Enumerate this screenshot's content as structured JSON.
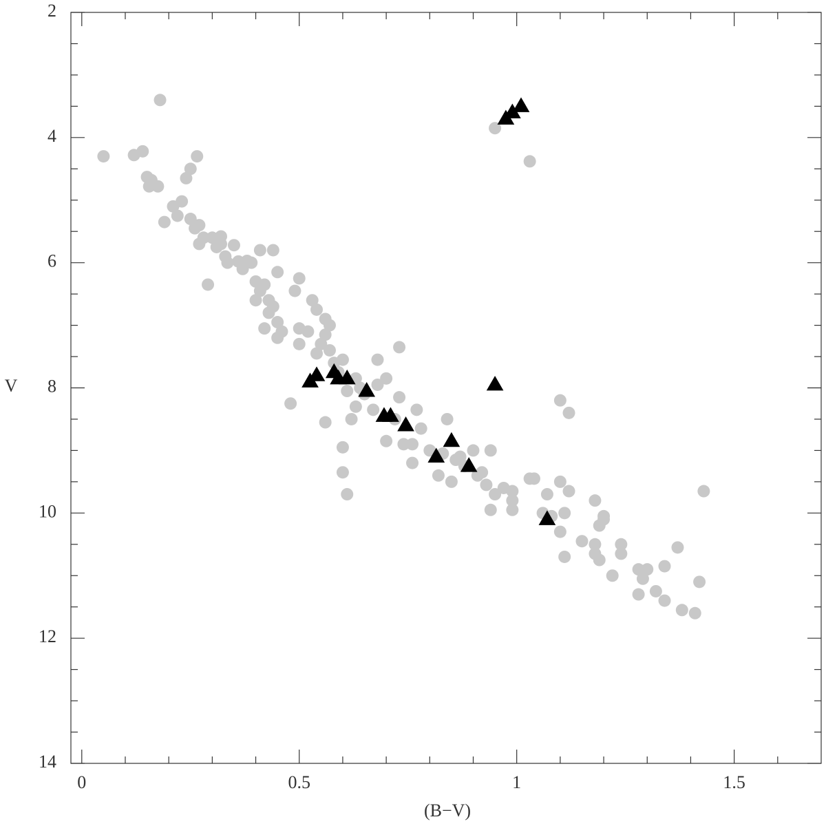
{
  "chart_data": {
    "type": "scatter",
    "xlabel": "(B−V)",
    "ylabel": "V",
    "xlim": [
      -0.025,
      1.7
    ],
    "ylim": [
      2,
      14
    ],
    "y_inverted": true,
    "xticks": [
      0,
      0.5,
      1,
      1.5
    ],
    "yticks": [
      2,
      4,
      6,
      8,
      10,
      12,
      14
    ],
    "xminorticks": [
      0.1,
      0.2,
      0.3,
      0.4,
      0.6,
      0.7,
      0.8,
      0.9,
      1.1,
      1.2,
      1.3,
      1.4,
      1.6
    ],
    "yminorticks": [
      2.5,
      3,
      3.5,
      4.5,
      5,
      5.5,
      6.5,
      7,
      7.5,
      8.5,
      9,
      9.5,
      10.5,
      11,
      11.5,
      12.5,
      13,
      13.5
    ],
    "series": [
      {
        "color": "#c8c8c8",
        "marker": "circle",
        "x": [
          0.05,
          0.18,
          0.12,
          0.14,
          0.15,
          0.16,
          0.155,
          0.175,
          0.19,
          0.21,
          0.23,
          0.22,
          0.24,
          0.25,
          0.265,
          0.25,
          0.26,
          0.27,
          0.27,
          0.28,
          0.29,
          0.3,
          0.31,
          0.32,
          0.32,
          0.33,
          0.335,
          0.35,
          0.36,
          0.37,
          0.38,
          0.39,
          0.4,
          0.4,
          0.41,
          0.41,
          0.42,
          0.42,
          0.43,
          0.43,
          0.44,
          0.44,
          0.45,
          0.45,
          0.45,
          0.46,
          0.48,
          0.49,
          0.5,
          0.5,
          0.5,
          0.52,
          0.53,
          0.54,
          0.54,
          0.55,
          0.56,
          0.56,
          0.56,
          0.57,
          0.57,
          0.58,
          0.59,
          0.6,
          0.6,
          0.6,
          0.61,
          0.61,
          0.62,
          0.63,
          0.64,
          0.63,
          0.65,
          0.67,
          0.68,
          0.68,
          0.7,
          0.7,
          0.72,
          0.73,
          0.73,
          0.74,
          0.76,
          0.76,
          0.77,
          0.78,
          0.8,
          0.82,
          0.83,
          0.84,
          0.85,
          0.86,
          0.87,
          0.88,
          0.9,
          0.91,
          0.92,
          0.93,
          0.94,
          0.94,
          0.95,
          0.95,
          0.97,
          0.99,
          0.99,
          0.99,
          1.03,
          1.03,
          1.04,
          1.06,
          1.07,
          1.08,
          1.1,
          1.1,
          1.1,
          1.11,
          1.11,
          1.12,
          1.12,
          1.15,
          1.18,
          1.18,
          1.18,
          1.19,
          1.19,
          1.2,
          1.2,
          1.22,
          1.24,
          1.24,
          1.28,
          1.28,
          1.29,
          1.3,
          1.32,
          1.34,
          1.34,
          1.37,
          1.38,
          1.41,
          1.42,
          1.43
        ],
        "y": [
          4.3,
          3.4,
          4.28,
          4.22,
          4.63,
          4.68,
          4.78,
          4.78,
          5.35,
          5.1,
          5.02,
          5.25,
          4.65,
          4.5,
          4.3,
          5.3,
          5.45,
          5.4,
          5.7,
          5.6,
          6.35,
          5.6,
          5.75,
          5.58,
          5.7,
          5.9,
          6.0,
          5.72,
          5.98,
          6.1,
          5.97,
          6.0,
          6.3,
          6.6,
          5.8,
          6.45,
          6.35,
          7.05,
          6.6,
          6.8,
          5.8,
          6.7,
          6.15,
          6.95,
          7.2,
          7.1,
          8.25,
          6.45,
          6.25,
          7.05,
          7.3,
          7.1,
          6.6,
          6.75,
          7.45,
          7.3,
          6.9,
          7.15,
          8.55,
          7.4,
          7.0,
          7.6,
          7.75,
          7.55,
          8.95,
          9.35,
          8.05,
          9.7,
          8.5,
          7.85,
          8.0,
          8.3,
          8.1,
          8.35,
          7.55,
          7.95,
          7.85,
          8.85,
          8.5,
          8.15,
          7.35,
          8.9,
          8.9,
          9.2,
          8.35,
          8.65,
          9.0,
          9.4,
          9.05,
          8.5,
          9.5,
          9.15,
          9.1,
          9.25,
          9.0,
          9.4,
          9.35,
          9.55,
          9.0,
          9.95,
          9.7,
          3.85,
          9.6,
          9.65,
          9.95,
          9.8,
          4.38,
          9.45,
          9.45,
          10.0,
          9.7,
          10.05,
          8.2,
          9.5,
          10.3,
          10.0,
          10.7,
          8.4,
          9.65,
          10.45,
          9.8,
          10.5,
          10.65,
          10.2,
          10.75,
          10.05,
          10.1,
          11.0,
          10.5,
          10.65,
          10.9,
          11.3,
          11.05,
          10.9,
          11.25,
          10.85,
          11.4,
          10.55,
          11.55,
          11.6,
          11.1,
          9.65
        ]
      },
      {
        "color": "#000000",
        "marker": "triangle",
        "x": [
          1.01,
          0.99,
          0.975,
          0.95,
          0.525,
          0.54,
          0.58,
          0.59,
          0.61,
          0.655,
          0.695,
          0.71,
          0.745,
          0.815,
          0.85,
          0.89,
          1.07
        ],
        "y": [
          3.5,
          3.6,
          3.7,
          7.95,
          7.9,
          7.8,
          7.75,
          7.85,
          7.85,
          8.05,
          8.45,
          8.45,
          8.6,
          9.1,
          8.85,
          9.25,
          10.1
        ]
      }
    ]
  }
}
